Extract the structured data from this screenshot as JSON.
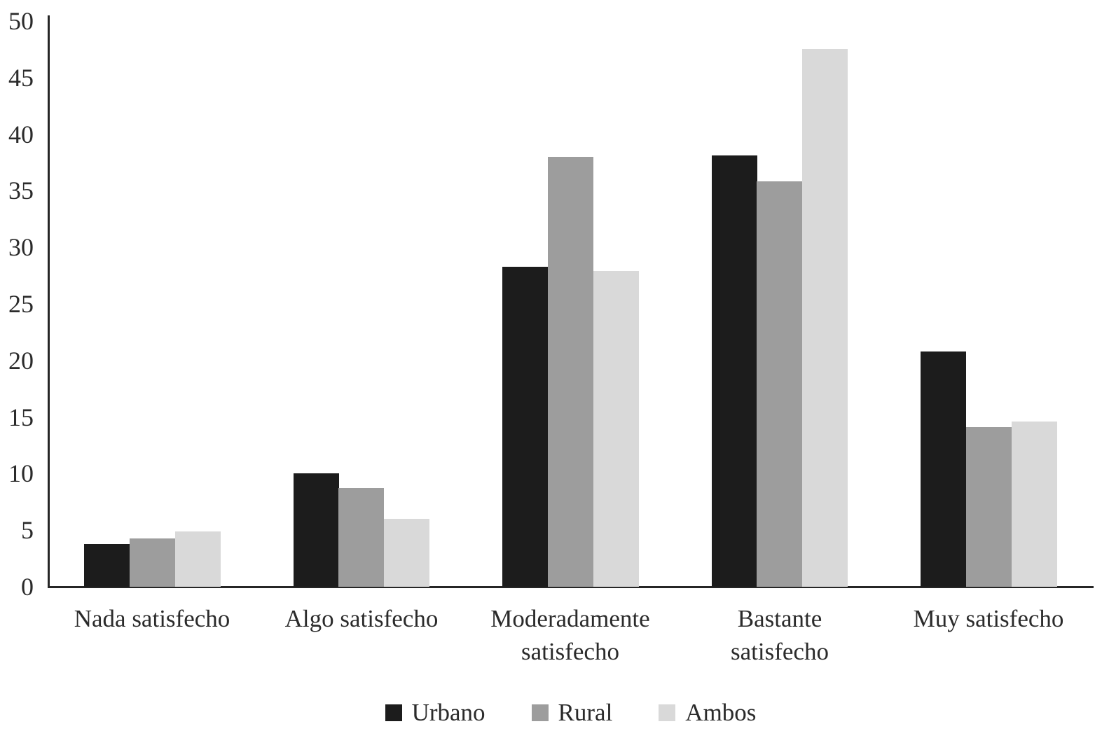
{
  "chart_data": {
    "type": "bar",
    "title": "",
    "xlabel": "",
    "ylabel": "",
    "categories": [
      "Nada satisfecho",
      "Algo satisfecho",
      "Moderadamente\nsatisfecho",
      "Bastante\nsatisfecho",
      "Muy satisfecho"
    ],
    "series": [
      {
        "name": "Urbano",
        "color": "#1c1c1c",
        "values": [
          3.8,
          10.0,
          28.3,
          38.1,
          20.8
        ]
      },
      {
        "name": "Rural",
        "color": "#9d9d9d",
        "values": [
          4.3,
          8.7,
          38.0,
          35.8,
          14.1
        ]
      },
      {
        "name": "Ambos",
        "color": "#d9d9d9",
        "values": [
          4.9,
          6.0,
          27.9,
          47.5,
          14.6
        ]
      }
    ],
    "y_axis": {
      "min": 0,
      "max": 50,
      "tick_step": 5,
      "ticks": [
        0,
        5,
        10,
        15,
        20,
        25,
        30,
        35,
        40,
        45,
        50
      ]
    },
    "grid": false,
    "legend_position": "bottom",
    "axis_color": "#262626",
    "text_color": "#2b2b2b"
  }
}
